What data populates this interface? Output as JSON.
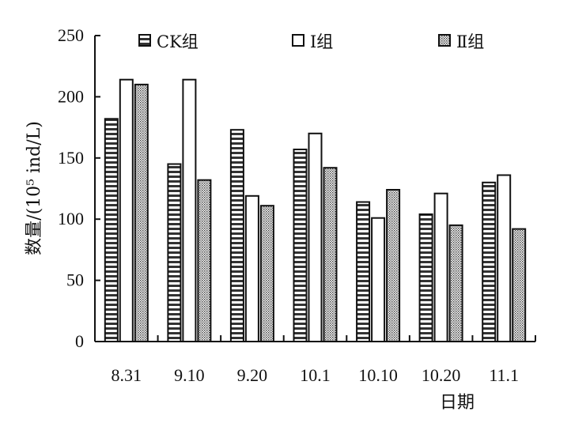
{
  "chart_data": {
    "type": "bar",
    "categories": [
      "8.31",
      "9.10",
      "9.20",
      "10.1",
      "10.10",
      "10.20",
      "11.1"
    ],
    "series": [
      {
        "name": "CK组",
        "pattern": "horizontal-stripes",
        "values": [
          182,
          145,
          173,
          157,
          114,
          104,
          130
        ]
      },
      {
        "name": "Ⅰ组",
        "pattern": "white",
        "values": [
          214,
          214,
          119,
          170,
          101,
          121,
          136
        ]
      },
      {
        "name": "Ⅱ组",
        "pattern": "dotted",
        "values": [
          210,
          132,
          111,
          142,
          124,
          95,
          92
        ]
      }
    ],
    "title": "",
    "xlabel": "日期",
    "ylabel": "数量/(10⁵ ind/L)",
    "ylim": [
      0,
      250
    ],
    "yticks": [
      0,
      50,
      100,
      150,
      200,
      250
    ],
    "grid": false,
    "legend": "top",
    "colors": {
      "axis": "#111111",
      "bar_stroke": "#111111",
      "bar_fill_white": "#ffffff",
      "pattern_ink": "#333333"
    }
  }
}
